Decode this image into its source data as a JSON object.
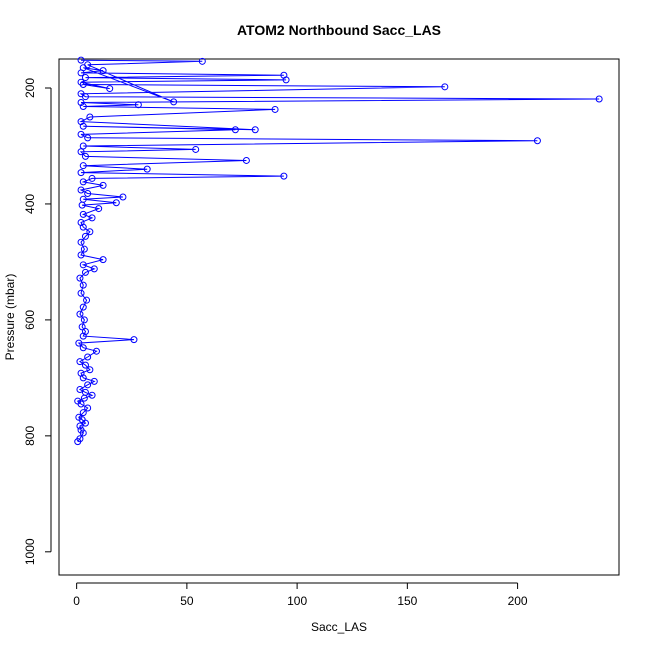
{
  "chart_data": {
    "type": "line",
    "title": "ATOM2 Northbound Sacc_LAS",
    "xlabel": "Sacc_LAS",
    "ylabel": "Pressure (mbar)",
    "xlim": [
      -8,
      246
    ],
    "ylim": [
      150,
      1040
    ],
    "y_inverted": true,
    "x_ticks": [
      0,
      50,
      100,
      150,
      200
    ],
    "y_ticks": [
      200,
      400,
      600,
      800,
      1000
    ],
    "grid": false,
    "legend": "none",
    "color": "#0000ff",
    "series": [
      {
        "values": [
          {
            "x": 0.5,
            "y": 810
          },
          {
            "x": 1.5,
            "y": 805
          },
          {
            "x": 3,
            "y": 795
          },
          {
            "x": 2,
            "y": 790
          },
          {
            "x": 1.5,
            "y": 783
          },
          {
            "x": 4,
            "y": 778
          },
          {
            "x": 2.5,
            "y": 772
          },
          {
            "x": 1,
            "y": 768
          },
          {
            "x": 3,
            "y": 760
          },
          {
            "x": 5,
            "y": 752
          },
          {
            "x": 2,
            "y": 745
          },
          {
            "x": 0.5,
            "y": 740
          },
          {
            "x": 3.5,
            "y": 735
          },
          {
            "x": 7,
            "y": 730
          },
          {
            "x": 4,
            "y": 725
          },
          {
            "x": 1.5,
            "y": 720
          },
          {
            "x": 5,
            "y": 712
          },
          {
            "x": 8,
            "y": 706
          },
          {
            "x": 3,
            "y": 700
          },
          {
            "x": 2,
            "y": 692
          },
          {
            "x": 6,
            "y": 686
          },
          {
            "x": 4,
            "y": 678
          },
          {
            "x": 1.5,
            "y": 672
          },
          {
            "x": 5,
            "y": 664
          },
          {
            "x": 9,
            "y": 654
          },
          {
            "x": 3,
            "y": 648
          },
          {
            "x": 1,
            "y": 640
          },
          {
            "x": 26,
            "y": 634
          },
          {
            "x": 3,
            "y": 628
          },
          {
            "x": 4,
            "y": 620
          },
          {
            "x": 2.5,
            "y": 612
          },
          {
            "x": 3.5,
            "y": 600
          },
          {
            "x": 1.5,
            "y": 590
          },
          {
            "x": 3,
            "y": 578
          },
          {
            "x": 4.5,
            "y": 566
          },
          {
            "x": 2,
            "y": 554
          },
          {
            "x": 3,
            "y": 540
          },
          {
            "x": 1.5,
            "y": 528
          },
          {
            "x": 4,
            "y": 518
          },
          {
            "x": 8,
            "y": 512
          },
          {
            "x": 3,
            "y": 505
          },
          {
            "x": 12,
            "y": 496
          },
          {
            "x": 2,
            "y": 488
          },
          {
            "x": 3.5,
            "y": 478
          },
          {
            "x": 2,
            "y": 466
          },
          {
            "x": 4,
            "y": 456
          },
          {
            "x": 6,
            "y": 448
          },
          {
            "x": 3,
            "y": 440
          },
          {
            "x": 2,
            "y": 432
          },
          {
            "x": 7,
            "y": 424
          },
          {
            "x": 3,
            "y": 418
          },
          {
            "x": 10,
            "y": 408
          },
          {
            "x": 2.5,
            "y": 402
          },
          {
            "x": 18,
            "y": 398
          },
          {
            "x": 3,
            "y": 392
          },
          {
            "x": 21,
            "y": 388
          },
          {
            "x": 5,
            "y": 382
          },
          {
            "x": 2,
            "y": 376
          },
          {
            "x": 12,
            "y": 368
          },
          {
            "x": 3,
            "y": 362
          },
          {
            "x": 7,
            "y": 356
          },
          {
            "x": 94,
            "y": 352
          },
          {
            "x": 2,
            "y": 346
          },
          {
            "x": 32,
            "y": 340
          },
          {
            "x": 3,
            "y": 334
          },
          {
            "x": 77,
            "y": 325
          },
          {
            "x": 4,
            "y": 318
          },
          {
            "x": 2,
            "y": 310
          },
          {
            "x": 54,
            "y": 306
          },
          {
            "x": 3,
            "y": 300
          },
          {
            "x": 209,
            "y": 291
          },
          {
            "x": 5,
            "y": 286
          },
          {
            "x": 2,
            "y": 280
          },
          {
            "x": 72,
            "y": 272
          },
          {
            "x": 3,
            "y": 266
          },
          {
            "x": 81,
            "y": 272
          },
          {
            "x": 2,
            "y": 258
          },
          {
            "x": 6,
            "y": 250
          },
          {
            "x": 90,
            "y": 237
          },
          {
            "x": 3,
            "y": 232
          },
          {
            "x": 28,
            "y": 229
          },
          {
            "x": 2,
            "y": 225
          },
          {
            "x": 237,
            "y": 219
          },
          {
            "x": 4,
            "y": 215
          },
          {
            "x": 2,
            "y": 210
          },
          {
            "x": 167,
            "y": 198
          },
          {
            "x": 3,
            "y": 194
          },
          {
            "x": 15,
            "y": 201
          },
          {
            "x": 2,
            "y": 190
          },
          {
            "x": 95,
            "y": 186
          },
          {
            "x": 4,
            "y": 182
          },
          {
            "x": 94,
            "y": 178
          },
          {
            "x": 2,
            "y": 174
          },
          {
            "x": 12,
            "y": 170
          },
          {
            "x": 3,
            "y": 165
          },
          {
            "x": 44,
            "y": 224
          },
          {
            "x": 5,
            "y": 160
          },
          {
            "x": 57,
            "y": 154
          },
          {
            "x": 2,
            "y": 152
          }
        ]
      }
    ]
  }
}
